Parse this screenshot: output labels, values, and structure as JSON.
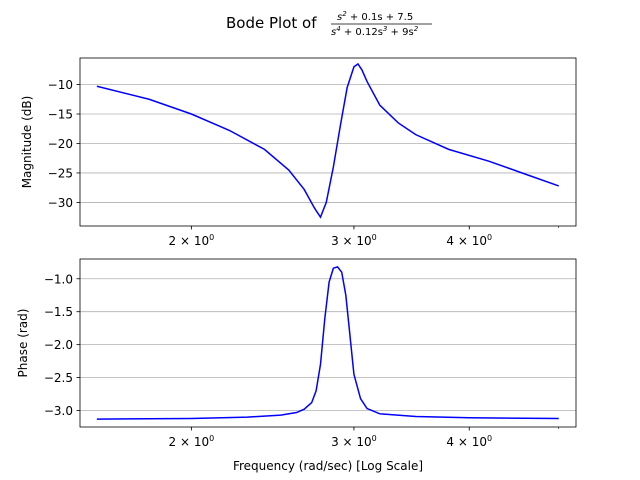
{
  "figure": {
    "title_prefix": "Bode Plot of",
    "title_numerator": [
      "s",
      "2",
      " + 0.1s + 7.5"
    ],
    "title_denominator": [
      "s",
      "4",
      " + 0.12s",
      "3",
      " + 9s",
      "2"
    ]
  },
  "chart_data": [
    {
      "type": "line",
      "title": "",
      "xlabel": "",
      "ylabel": "Magnitude (dB)",
      "xscale": "log",
      "xlim": [
        1.515,
        5.22
      ],
      "ylim": [
        -34.0,
        -5.5
      ],
      "yticks": [
        -10,
        -15,
        -20,
        -25,
        -30
      ],
      "ytick_labels": [
        "−10",
        "−15",
        "−20",
        "−25",
        "−30"
      ],
      "xticks": [
        2,
        3,
        4
      ],
      "xtick_labels": [
        [
          "2",
          "0"
        ],
        [
          "3",
          "0"
        ],
        [
          "4",
          "0"
        ]
      ],
      "grid": "y",
      "series": [
        {
          "color": "#0000ff",
          "x": [
            1.58,
            1.8,
            2.0,
            2.2,
            2.4,
            2.55,
            2.65,
            2.72,
            2.76,
            2.8,
            2.85,
            2.9,
            2.95,
            3.0,
            3.03,
            3.06,
            3.1,
            3.2,
            3.35,
            3.5,
            3.8,
            4.2,
            4.6,
            5.0
          ],
          "y": [
            -10.3,
            -12.5,
            -15.0,
            -17.8,
            -21.0,
            -24.5,
            -27.8,
            -31.0,
            -32.5,
            -30.0,
            -24.0,
            -17.0,
            -10.5,
            -7.0,
            -6.5,
            -7.5,
            -9.5,
            -13.5,
            -16.5,
            -18.5,
            -21.0,
            -23.0,
            -25.2,
            -27.2
          ]
        }
      ]
    },
    {
      "type": "line",
      "title": "",
      "xlabel": "Frequency (rad/sec) [Log Scale]",
      "ylabel": "Phase (rad)",
      "xscale": "log",
      "xlim": [
        1.515,
        5.22
      ],
      "ylim": [
        -3.25,
        -0.7
      ],
      "yticks": [
        -1.0,
        -1.5,
        -2.0,
        -2.5,
        -3.0
      ],
      "ytick_labels": [
        "−1.0",
        "−1.5",
        "−2.0",
        "−2.5",
        "−3.0"
      ],
      "xticks": [
        2,
        3,
        4
      ],
      "xtick_labels": [
        [
          "2",
          "0"
        ],
        [
          "3",
          "0"
        ],
        [
          "4",
          "0"
        ]
      ],
      "grid": "y",
      "series": [
        {
          "color": "#0000ff",
          "x": [
            1.58,
            2.0,
            2.3,
            2.5,
            2.6,
            2.65,
            2.7,
            2.73,
            2.76,
            2.79,
            2.82,
            2.85,
            2.88,
            2.91,
            2.94,
            2.97,
            3.0,
            3.05,
            3.1,
            3.2,
            3.5,
            4.0,
            5.0
          ],
          "y": [
            -3.13,
            -3.12,
            -3.1,
            -3.07,
            -3.03,
            -2.98,
            -2.88,
            -2.7,
            -2.3,
            -1.6,
            -1.05,
            -0.84,
            -0.82,
            -0.9,
            -1.25,
            -1.85,
            -2.45,
            -2.82,
            -2.97,
            -3.05,
            -3.09,
            -3.11,
            -3.12
          ]
        }
      ]
    }
  ]
}
